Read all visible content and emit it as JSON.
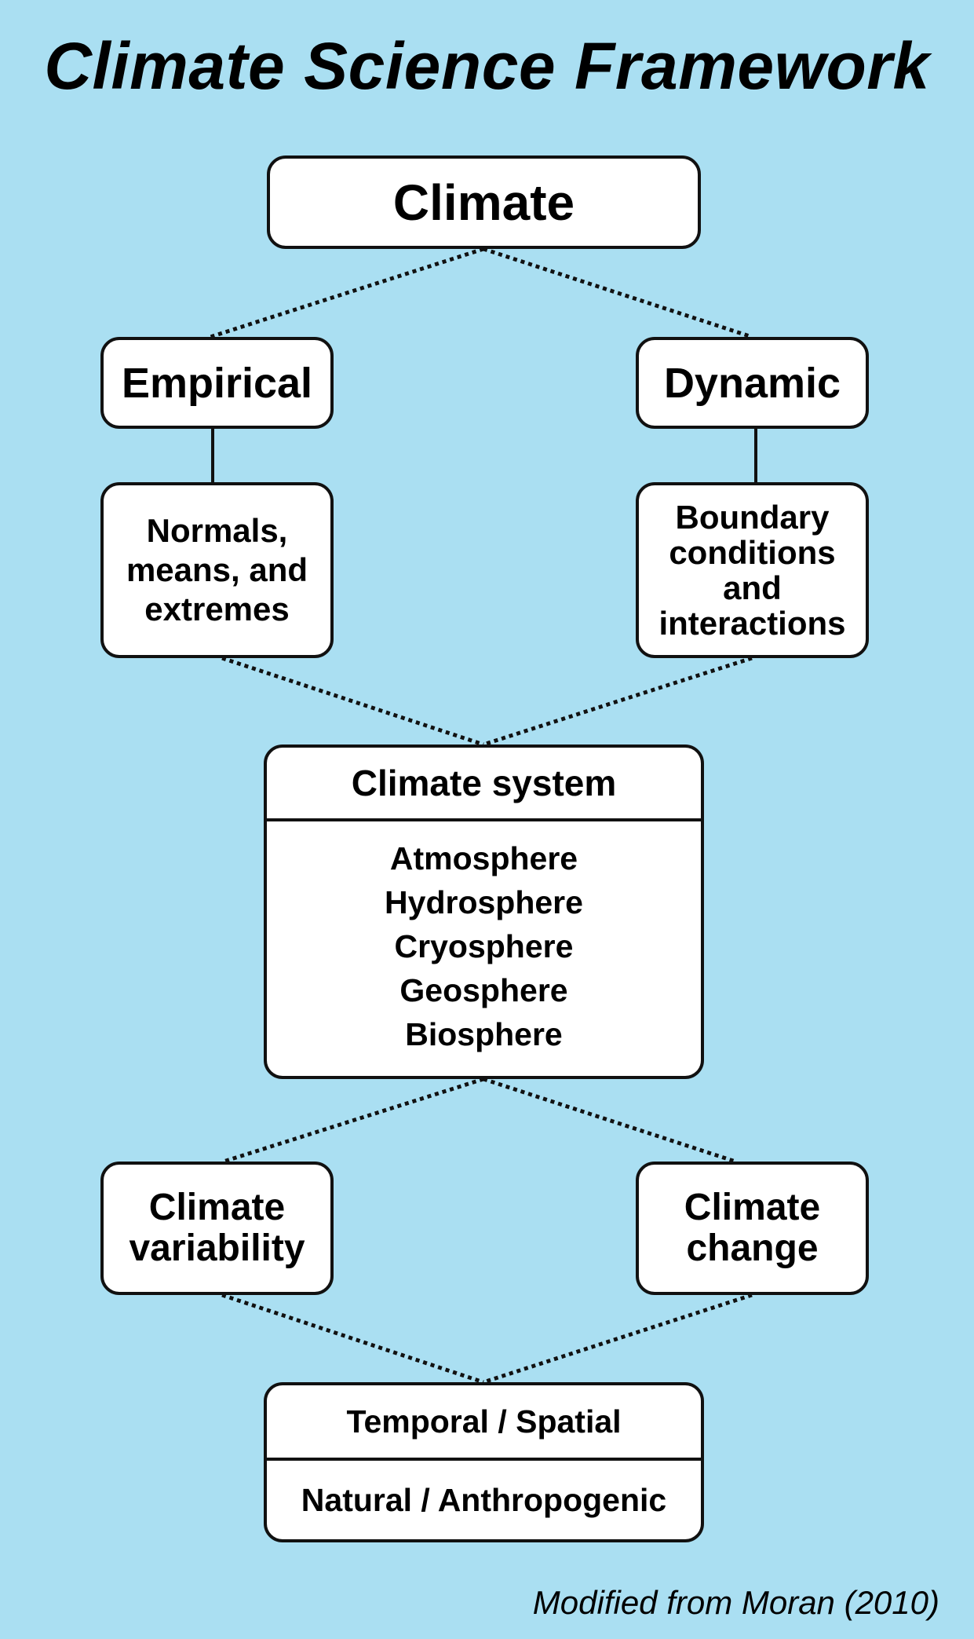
{
  "title": "Climate Science Framework",
  "nodes": {
    "climate": {
      "label": "Climate"
    },
    "empirical": {
      "label": "Empirical"
    },
    "dynamic": {
      "label": "Dynamic"
    },
    "normals": {
      "lines": [
        "Normals,",
        "means, and",
        "extremes"
      ]
    },
    "boundary": {
      "lines": [
        "Boundary",
        "conditions",
        "and",
        "interactions"
      ]
    },
    "climate_system": {
      "title": "Climate system",
      "components": [
        "Atmosphere",
        "Hydrosphere",
        "Cryosphere",
        "Geosphere",
        "Biosphere"
      ]
    },
    "variability": {
      "lines": [
        "Climate",
        "variability"
      ]
    },
    "change": {
      "lines": [
        "Climate",
        "change"
      ]
    },
    "scale": {
      "top": "Temporal / Spatial",
      "bottom": "Natural / Anthropogenic"
    }
  },
  "connections": [
    {
      "from": "climate",
      "to": "empirical",
      "style": "dotted"
    },
    {
      "from": "climate",
      "to": "dynamic",
      "style": "dotted"
    },
    {
      "from": "empirical",
      "to": "normals",
      "style": "solid"
    },
    {
      "from": "dynamic",
      "to": "boundary",
      "style": "solid"
    },
    {
      "from": "normals",
      "to": "climate_system",
      "style": "dotted"
    },
    {
      "from": "boundary",
      "to": "climate_system",
      "style": "dotted"
    },
    {
      "from": "climate_system",
      "to": "variability",
      "style": "dotted"
    },
    {
      "from": "climate_system",
      "to": "change",
      "style": "dotted"
    },
    {
      "from": "variability",
      "to": "scale",
      "style": "dotted"
    },
    {
      "from": "change",
      "to": "scale",
      "style": "dotted"
    }
  ],
  "credit": "Modified from Moran (2010)",
  "colors": {
    "background": "#aadff2",
    "box_fill": "#ffffff",
    "stroke": "#111111"
  }
}
